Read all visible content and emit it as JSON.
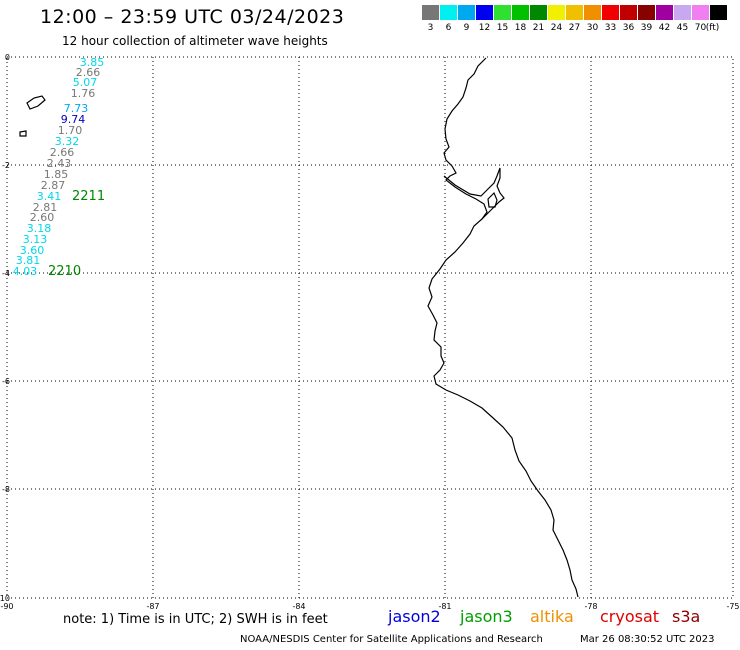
{
  "header": {
    "title": "12:00 – 23:59 UTC 03/24/2023",
    "subtitle": "12 hour collection of altimeter wave heights"
  },
  "legend": {
    "colors": [
      "#777777",
      "#00f0f0",
      "#00a8f0",
      "#0000f0",
      "#30e030",
      "#00c000",
      "#008800",
      "#f0f000",
      "#f0c000",
      "#f09000",
      "#f00000",
      "#c00000",
      "#880000",
      "#a000a0",
      "#c8a8f0",
      "#f080f0",
      "#000000"
    ],
    "labels": [
      "3",
      "6",
      "9",
      "12",
      "15",
      "18",
      "21",
      "24",
      "27",
      "30",
      "33",
      "36",
      "39",
      "42",
      "45",
      "70",
      "(ft)"
    ]
  },
  "axes": {
    "x_ticks": [
      "-90",
      "-87",
      "-84",
      "-81",
      "-78",
      "-75"
    ],
    "y_ticks": [
      "0",
      "-2",
      "-4",
      "-6",
      "-8",
      "-10"
    ]
  },
  "track_labels": [
    {
      "text": "3.85",
      "color": "#00d8e8"
    },
    {
      "text": "2.66",
      "color": "#777777"
    },
    {
      "text": "5.07",
      "color": "#00d8e8"
    },
    {
      "text": "1.76",
      "color": "#777777"
    },
    {
      "text": "7.73",
      "color": "#00a8f0"
    },
    {
      "text": "9.74",
      "color": "#0000c0"
    },
    {
      "text": "1.70",
      "color": "#777777"
    },
    {
      "text": "3.32",
      "color": "#00d8e8"
    },
    {
      "text": "2.66",
      "color": "#777777"
    },
    {
      "text": "2.43",
      "color": "#777777"
    },
    {
      "text": "1.85",
      "color": "#777777"
    },
    {
      "text": "2.87",
      "color": "#777777"
    },
    {
      "text": "3.41",
      "color": "#00d8e8"
    },
    {
      "text": "2.81",
      "color": "#777777"
    },
    {
      "text": "2.60",
      "color": "#777777"
    },
    {
      "text": "3.18",
      "color": "#00d8e8"
    },
    {
      "text": "3.13",
      "color": "#00d8e8"
    },
    {
      "text": "3.60",
      "color": "#00d8e8"
    },
    {
      "text": "3.81",
      "color": "#00d8e8"
    },
    {
      "text": "4.03",
      "color": "#00d8e8"
    }
  ],
  "time_labels": [
    {
      "text": "2211",
      "color": "#008800"
    },
    {
      "text": "2210",
      "color": "#008800"
    }
  ],
  "footer": {
    "note": "note:  1) Time is in UTC;  2) SWH is in feet",
    "satellites": [
      {
        "name": "jason2",
        "color": "#0000e0"
      },
      {
        "name": "jason3",
        "color": "#00a000"
      },
      {
        "name": "altika",
        "color": "#f09000"
      },
      {
        "name": "cryosat",
        "color": "#e00000"
      },
      {
        "name": "s3a",
        "color": "#900000"
      }
    ],
    "credit": "NOAA/NESDIS Center for Satellite Applications and Research",
    "timestamp": "Mar 26 08:30:52 UTC 2023"
  }
}
